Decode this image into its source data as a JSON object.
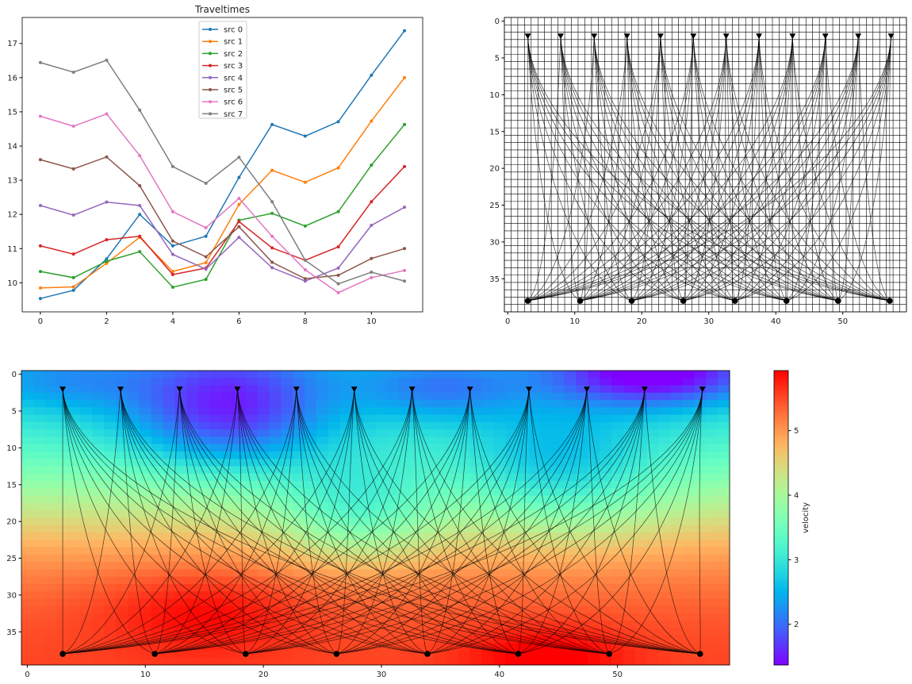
{
  "chart_data": [
    {
      "type": "line",
      "title": "Traveltimes",
      "x": [
        0,
        1,
        2,
        3,
        4,
        5,
        6,
        7,
        8,
        9,
        10,
        11
      ],
      "xlim": [
        -0.55,
        11.55
      ],
      "ylim": [
        9.15,
        17.76
      ],
      "xticks": [
        0,
        2,
        4,
        6,
        8,
        10
      ],
      "yticks": [
        10,
        11,
        12,
        13,
        14,
        15,
        16,
        17
      ],
      "legend_placement": "upper-center",
      "marker": "dot",
      "series": [
        {
          "name": "src 0",
          "color": "#1f77b4",
          "values": [
            9.54,
            9.78,
            10.7,
            12.0,
            11.08,
            11.36,
            13.08,
            14.63,
            14.29,
            14.71,
            16.07,
            17.37
          ]
        },
        {
          "name": "src 1",
          "color": "#ff7f0e",
          "values": [
            9.85,
            9.88,
            10.57,
            11.33,
            10.33,
            10.59,
            12.29,
            13.29,
            12.94,
            13.36,
            14.73,
            16.0
          ]
        },
        {
          "name": "src 2",
          "color": "#2ca02c",
          "values": [
            10.33,
            10.15,
            10.63,
            10.91,
            9.87,
            10.1,
            11.83,
            12.03,
            11.66,
            12.08,
            13.44,
            14.63
          ]
        },
        {
          "name": "src 3",
          "color": "#d62728",
          "values": [
            11.08,
            10.84,
            11.26,
            11.36,
            10.24,
            10.43,
            11.79,
            11.02,
            10.66,
            11.05,
            12.37,
            13.4
          ]
        },
        {
          "name": "src 4",
          "color": "#9467bd",
          "values": [
            12.26,
            11.98,
            12.36,
            12.26,
            10.83,
            10.4,
            11.33,
            10.44,
            10.05,
            10.43,
            11.68,
            12.21
          ]
        },
        {
          "name": "src 5",
          "color": "#8c564b",
          "values": [
            13.6,
            13.33,
            13.68,
            12.84,
            11.22,
            10.76,
            11.64,
            10.6,
            10.12,
            10.22,
            10.71,
            11.0
          ]
        },
        {
          "name": "src 6",
          "color": "#e377c2",
          "values": [
            14.87,
            14.58,
            14.94,
            13.72,
            12.08,
            11.61,
            12.47,
            11.36,
            10.38,
            9.71,
            10.15,
            10.36
          ]
        },
        {
          "name": "src 7",
          "color": "#7f7f7f",
          "values": [
            16.44,
            16.16,
            16.51,
            15.05,
            13.4,
            12.91,
            13.67,
            12.37,
            10.66,
            9.97,
            10.31,
            10.05
          ]
        }
      ]
    },
    {
      "type": "scatter",
      "description_kind": "ray paths over model grid",
      "xlim": [
        -0.5,
        59.5
      ],
      "ylim": [
        39.5,
        -0.5
      ],
      "xticks": [
        0,
        10,
        20,
        30,
        40,
        50
      ],
      "yticks": [
        0,
        5,
        10,
        15,
        20,
        25,
        30,
        35
      ],
      "grid": true,
      "grid_size": [
        60,
        40
      ],
      "sources": {
        "marker": "circle",
        "x": [
          3,
          10.8,
          18.5,
          26.2,
          33.9,
          41.6,
          49.3,
          57
        ],
        "y": 38
      },
      "receivers": {
        "marker": "triangle-down",
        "x": [
          3,
          7.9,
          12.9,
          17.8,
          22.8,
          27.7,
          32.6,
          37.5,
          42.5,
          47.4,
          52.3,
          57.2
        ],
        "y": 2
      },
      "ray_color": "#000000"
    },
    {
      "type": "heatmap",
      "xlim": [
        -0.5,
        59.5
      ],
      "ylim": [
        39.5,
        -0.5
      ],
      "xticks": [
        0,
        10,
        20,
        30,
        40,
        50
      ],
      "yticks": [
        0,
        5,
        10,
        15,
        20,
        25,
        30,
        35
      ],
      "colormap": "rainbow",
      "colorbar": {
        "label": "velocity",
        "range": [
          1.37,
          5.93
        ],
        "ticks": [
          2,
          3,
          4,
          5
        ]
      },
      "grid_size": [
        60,
        40
      ],
      "overlay": "same sources, receivers and ray paths"
    }
  ]
}
